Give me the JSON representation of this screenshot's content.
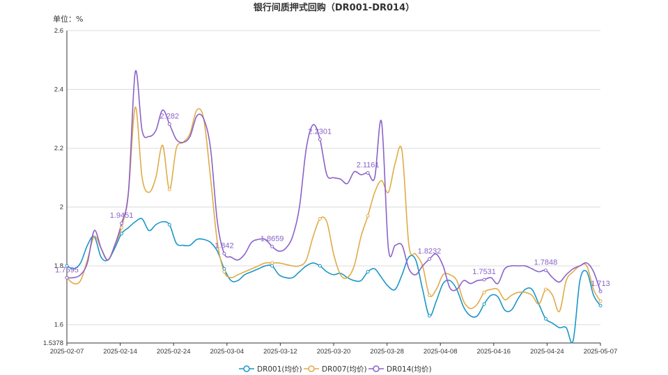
{
  "chart_data": {
    "type": "line",
    "title": "银行间质押式回购（DR001-DR014）",
    "unit_label": "单位：%",
    "y_ticks": [
      "1.5378",
      "1.6",
      "1.8",
      "2",
      "2.2",
      "2.4",
      "2.6"
    ],
    "x_ticks": [
      "2025-02-07",
      "2025-02-14",
      "2025-02-24",
      "2025-03-04",
      "2025-03-12",
      "2025-03-20",
      "2025-03-28",
      "2025-04-08",
      "2025-04-16",
      "2025-04-24",
      "2025-05-07"
    ],
    "ylim": [
      1.5378,
      2.6
    ],
    "grid": true,
    "legend_position": "bottom",
    "series": [
      {
        "name": "DR001(均价)",
        "color": "#1a96c6",
        "values": [
          1.8,
          1.79,
          1.81,
          1.87,
          1.9,
          1.83,
          1.82,
          1.86,
          1.91,
          1.93,
          1.95,
          1.96,
          1.92,
          1.94,
          1.95,
          1.94,
          1.877,
          1.87,
          1.87,
          1.89,
          1.89,
          1.88,
          1.85,
          1.79,
          1.75,
          1.75,
          1.77,
          1.78,
          1.79,
          1.8,
          1.8,
          1.77,
          1.76,
          1.76,
          1.78,
          1.8,
          1.81,
          1.8,
          1.78,
          1.77,
          1.775,
          1.76,
          1.75,
          1.75,
          1.78,
          1.79,
          1.76,
          1.73,
          1.72,
          1.77,
          1.83,
          1.82,
          1.72,
          1.63,
          1.68,
          1.74,
          1.75,
          1.72,
          1.66,
          1.63,
          1.63,
          1.67,
          1.7,
          1.695,
          1.65,
          1.65,
          1.69,
          1.72,
          1.72,
          1.67,
          1.62,
          1.605,
          1.59,
          1.59,
          1.545,
          1.75,
          1.78,
          1.7,
          1.665
        ]
      },
      {
        "name": "DR007(均价)",
        "color": "#e0ab46",
        "values": [
          1.76,
          1.74,
          1.75,
          1.82,
          1.9,
          1.86,
          1.82,
          1.87,
          1.93,
          2.05,
          2.34,
          2.1,
          2.05,
          2.1,
          2.21,
          2.06,
          2.2,
          2.22,
          2.25,
          2.33,
          2.3,
          2.1,
          1.88,
          1.78,
          1.76,
          1.77,
          1.78,
          1.79,
          1.8,
          1.81,
          1.81,
          1.81,
          1.805,
          1.8,
          1.8,
          1.82,
          1.9,
          1.96,
          1.95,
          1.84,
          1.77,
          1.76,
          1.8,
          1.9,
          1.97,
          2.05,
          2.09,
          2.05,
          2.15,
          2.19,
          1.87,
          1.84,
          1.8,
          1.7,
          1.72,
          1.77,
          1.77,
          1.75,
          1.68,
          1.655,
          1.67,
          1.71,
          1.72,
          1.72,
          1.685,
          1.7,
          1.71,
          1.71,
          1.7,
          1.67,
          1.72,
          1.7,
          1.645,
          1.75,
          1.78,
          1.8,
          1.8,
          1.72,
          1.68
        ]
      },
      {
        "name": "DR014(均价)",
        "color": "#8a62c9",
        "values": [
          1.7595,
          1.76,
          1.77,
          1.81,
          1.92,
          1.86,
          1.82,
          1.87,
          1.9451,
          2.05,
          2.46,
          2.26,
          2.24,
          2.26,
          2.33,
          2.282,
          2.23,
          2.22,
          2.24,
          2.31,
          2.3,
          2.2,
          1.95,
          1.842,
          1.83,
          1.82,
          1.84,
          1.88,
          1.89,
          1.89,
          1.8659,
          1.85,
          1.86,
          1.9,
          2.0,
          2.2,
          2.28,
          2.2301,
          2.11,
          2.1,
          2.095,
          2.08,
          2.12,
          2.11,
          2.1161,
          2.1,
          2.29,
          1.86,
          1.87,
          1.87,
          1.79,
          1.77,
          1.8,
          1.8232,
          1.84,
          1.8,
          1.725,
          1.72,
          1.75,
          1.74,
          1.75,
          1.7531,
          1.76,
          1.74,
          1.79,
          1.8,
          1.8,
          1.8,
          1.79,
          1.78,
          1.7848,
          1.76,
          1.745,
          1.77,
          1.79,
          1.8,
          1.81,
          1.78,
          1.713
        ]
      }
    ],
    "data_labels": [
      {
        "series": 2,
        "index": 0,
        "text": "1.7595"
      },
      {
        "series": 2,
        "index": 8,
        "text": "1.9451"
      },
      {
        "series": 2,
        "index": 15,
        "text": "2.282"
      },
      {
        "series": 2,
        "index": 23,
        "text": "1.842"
      },
      {
        "series": 2,
        "index": 30,
        "text": "1.8659"
      },
      {
        "series": 2,
        "index": 37,
        "text": "2.2301"
      },
      {
        "series": 2,
        "index": 44,
        "text": "2.1161"
      },
      {
        "series": 2,
        "index": 53,
        "text": "1.8232"
      },
      {
        "series": 2,
        "index": 61,
        "text": "1.7531"
      },
      {
        "series": 2,
        "index": 70,
        "text": "1.7848"
      },
      {
        "series": 2,
        "index": 78,
        "text": "1.713"
      }
    ]
  }
}
